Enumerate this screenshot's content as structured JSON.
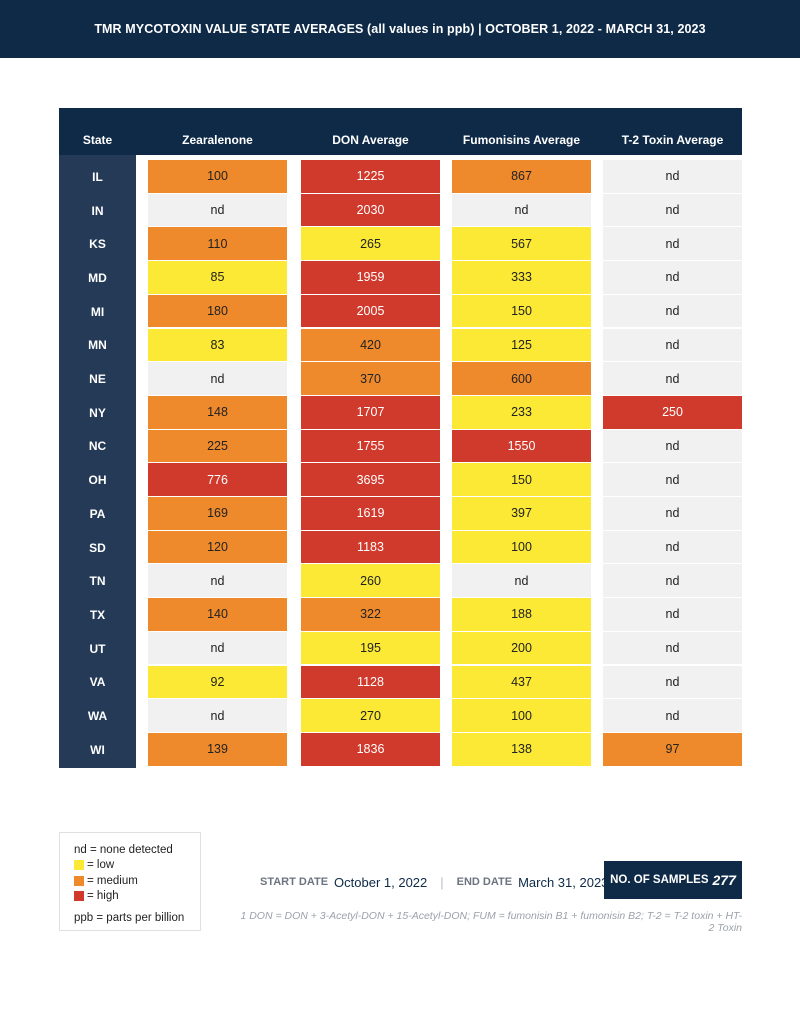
{
  "banner": {
    "title": "TMR MYCOTOXIN VALUE STATE AVERAGES (all values in ppb) | OCTOBER 1, 2022 - MARCH 31, 2023"
  },
  "table": {
    "headers": [
      "State",
      "Zearalenone",
      "DON Average",
      "Fumonisins Average",
      "T-2 Toxin Average"
    ],
    "rows": [
      {
        "state": "IL",
        "values": [
          "100",
          "1225",
          "867",
          "nd"
        ],
        "levels": [
          "medium",
          "high",
          "medium",
          "nd"
        ]
      },
      {
        "state": "IN",
        "values": [
          "nd",
          "2030",
          "nd",
          "nd"
        ],
        "levels": [
          "nd",
          "high",
          "nd",
          "nd"
        ]
      },
      {
        "state": "KS",
        "values": [
          "110",
          "265",
          "567",
          "nd"
        ],
        "levels": [
          "medium",
          "low",
          "low",
          "nd"
        ]
      },
      {
        "state": "MD",
        "values": [
          "85",
          "1959",
          "333",
          "nd"
        ],
        "levels": [
          "low",
          "high",
          "low",
          "nd"
        ]
      },
      {
        "state": "MI",
        "values": [
          "180",
          "2005",
          "150",
          "nd"
        ],
        "levels": [
          "medium",
          "high",
          "low",
          "nd"
        ]
      },
      {
        "state": "MN",
        "values": [
          "83",
          "420",
          "125",
          "nd"
        ],
        "levels": [
          "low",
          "medium",
          "low",
          "nd"
        ]
      },
      {
        "state": "NE",
        "values": [
          "nd",
          "370",
          "600",
          "nd"
        ],
        "levels": [
          "nd",
          "medium",
          "medium",
          "nd"
        ]
      },
      {
        "state": "NY",
        "values": [
          "148",
          "1707",
          "233",
          "250"
        ],
        "levels": [
          "medium",
          "high",
          "low",
          "high"
        ]
      },
      {
        "state": "NC",
        "values": [
          "225",
          "1755",
          "1550",
          "nd"
        ],
        "levels": [
          "medium",
          "high",
          "high",
          "nd"
        ]
      },
      {
        "state": "OH",
        "values": [
          "776",
          "3695",
          "150",
          "nd"
        ],
        "levels": [
          "high",
          "high",
          "low",
          "nd"
        ]
      },
      {
        "state": "PA",
        "values": [
          "169",
          "1619",
          "397",
          "nd"
        ],
        "levels": [
          "medium",
          "high",
          "low",
          "nd"
        ]
      },
      {
        "state": "SD",
        "values": [
          "120",
          "1183",
          "100",
          "nd"
        ],
        "levels": [
          "medium",
          "high",
          "low",
          "nd"
        ]
      },
      {
        "state": "TN",
        "values": [
          "nd",
          "260",
          "nd",
          "nd"
        ],
        "levels": [
          "nd",
          "low",
          "nd",
          "nd"
        ]
      },
      {
        "state": "TX",
        "values": [
          "140",
          "322",
          "188",
          "nd"
        ],
        "levels": [
          "medium",
          "medium",
          "low",
          "nd"
        ]
      },
      {
        "state": "UT",
        "values": [
          "nd",
          "195",
          "200",
          "nd"
        ],
        "levels": [
          "nd",
          "low",
          "low",
          "nd"
        ]
      },
      {
        "state": "VA",
        "values": [
          "92",
          "1128",
          "437",
          "nd"
        ],
        "levels": [
          "low",
          "high",
          "low",
          "nd"
        ]
      },
      {
        "state": "WA",
        "values": [
          "nd",
          "270",
          "100",
          "nd"
        ],
        "levels": [
          "nd",
          "low",
          "low",
          "nd"
        ]
      },
      {
        "state": "WI",
        "values": [
          "139",
          "1836",
          "138",
          "97"
        ],
        "levels": [
          "medium",
          "high",
          "low",
          "medium"
        ]
      }
    ]
  },
  "legend": {
    "nd": "nd  = none detected",
    "low": "= low",
    "medium": "= medium",
    "high": "= high",
    "ppb": "ppb = parts per billion"
  },
  "colors": {
    "navy": "#0e2a47",
    "state_column": "#243a57",
    "nd": "#f1f1f1",
    "low": "#fbe935",
    "medium": "#ee8a2c",
    "high": "#cf3a2c"
  },
  "footer": {
    "start_label": "START DATE",
    "start_value": "October 1, 2022",
    "separator": "|",
    "end_label": "END DATE",
    "end_value": "March 31, 2023",
    "samples_label": "NO. OF SAMPLES",
    "samples_count": "277",
    "footnote": "1 DON = DON + 3-Acetyl-DON + 15-Acetyl-DON; FUM = fumonisin B1 + fumonisin B2; T-2 = T-2 toxin + HT-2 Toxin"
  }
}
